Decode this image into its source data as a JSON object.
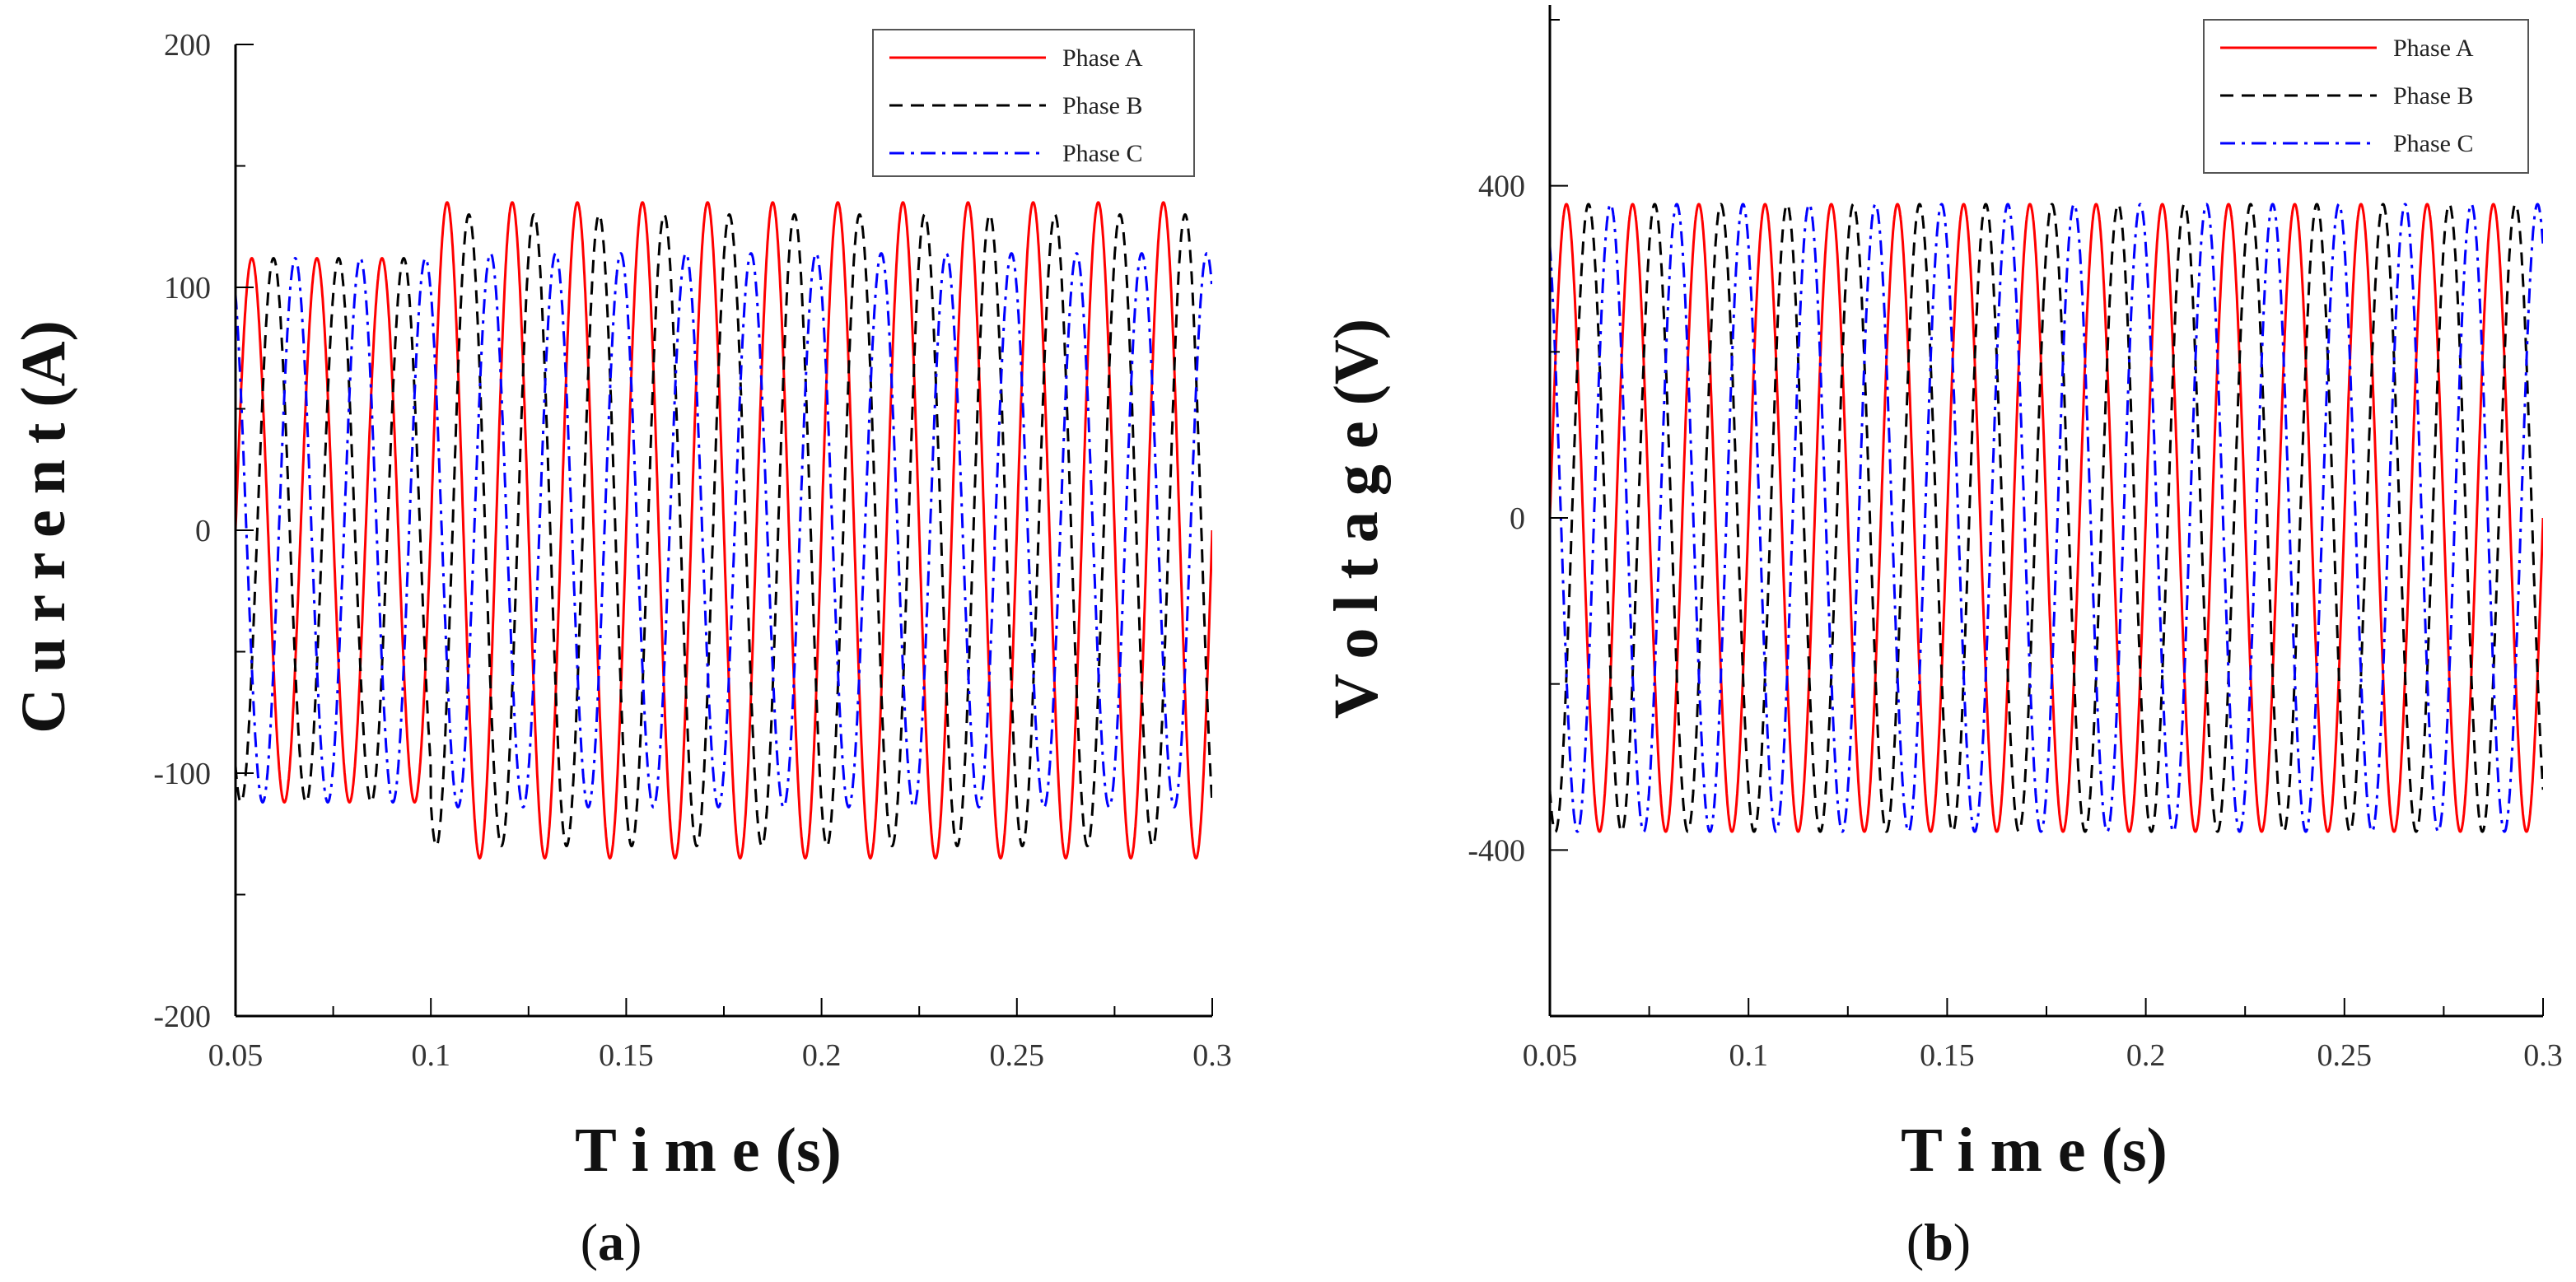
{
  "chart_data": [
    {
      "panel_id": "a",
      "type": "line",
      "caption_open": "(",
      "caption_letter": "a",
      "caption_close": ")",
      "xlabel": "T i m e  (s)",
      "ylabel": "C u r r e n t  (A)",
      "xlim": [
        0.05,
        0.3
      ],
      "ylim": [
        -200,
        200
      ],
      "x_ticks": [
        0.05,
        0.1,
        0.15,
        0.2,
        0.25,
        0.3
      ],
      "x_tick_labels": [
        "0.05",
        "0.1",
        "0.15",
        "0.2",
        "0.25",
        "0.3"
      ],
      "y_ticks": [
        -200,
        -100,
        0,
        100,
        200
      ],
      "y_tick_labels": [
        "-200",
        "-100",
        "0",
        "100",
        "200"
      ],
      "grid": false,
      "legend_position": "top-right",
      "frequency_hz": 60,
      "step_time_s": 0.1,
      "series": [
        {
          "name": "Phase A",
          "color": "#ff0000",
          "style": "solid",
          "amplitude_before": 112,
          "amplitude_after": 135,
          "phase_deg": 0
        },
        {
          "name": "Phase B",
          "color": "#000000",
          "style": "dashed",
          "amplitude_before": 112,
          "amplitude_after": 130,
          "phase_deg": -120
        },
        {
          "name": "Phase C",
          "color": "#0000ff",
          "style": "dashdot",
          "amplitude_before": 112,
          "amplitude_after": 114,
          "phase_deg": 120
        }
      ]
    },
    {
      "panel_id": "b",
      "type": "line",
      "caption_open": "(",
      "caption_letter": "b",
      "caption_close": ")",
      "xlabel": "T i m e  (s)",
      "ylabel": "V o l t a g e  (V)",
      "xlim": [
        0.05,
        0.3
      ],
      "ylim": [
        -600,
        600
      ],
      "x_ticks": [
        0.05,
        0.1,
        0.15,
        0.2,
        0.25,
        0.3
      ],
      "x_tick_labels": [
        "0.05",
        "0.1",
        "0.15",
        "0.2",
        "0.25",
        "0.3"
      ],
      "y_ticks": [
        -400,
        0,
        400
      ],
      "y_tick_labels": [
        "-400",
        "0",
        "400"
      ],
      "grid": false,
      "legend_position": "top-right",
      "frequency_hz": 60,
      "series": [
        {
          "name": "Phase A",
          "color": "#ff0000",
          "style": "solid",
          "amplitude": 378,
          "phase_deg": 0
        },
        {
          "name": "Phase B",
          "color": "#000000",
          "style": "dashed",
          "amplitude": 378,
          "phase_deg": -120
        },
        {
          "name": "Phase C",
          "color": "#0000ff",
          "style": "dashdot",
          "amplitude": 378,
          "phase_deg": 120
        }
      ]
    }
  ]
}
